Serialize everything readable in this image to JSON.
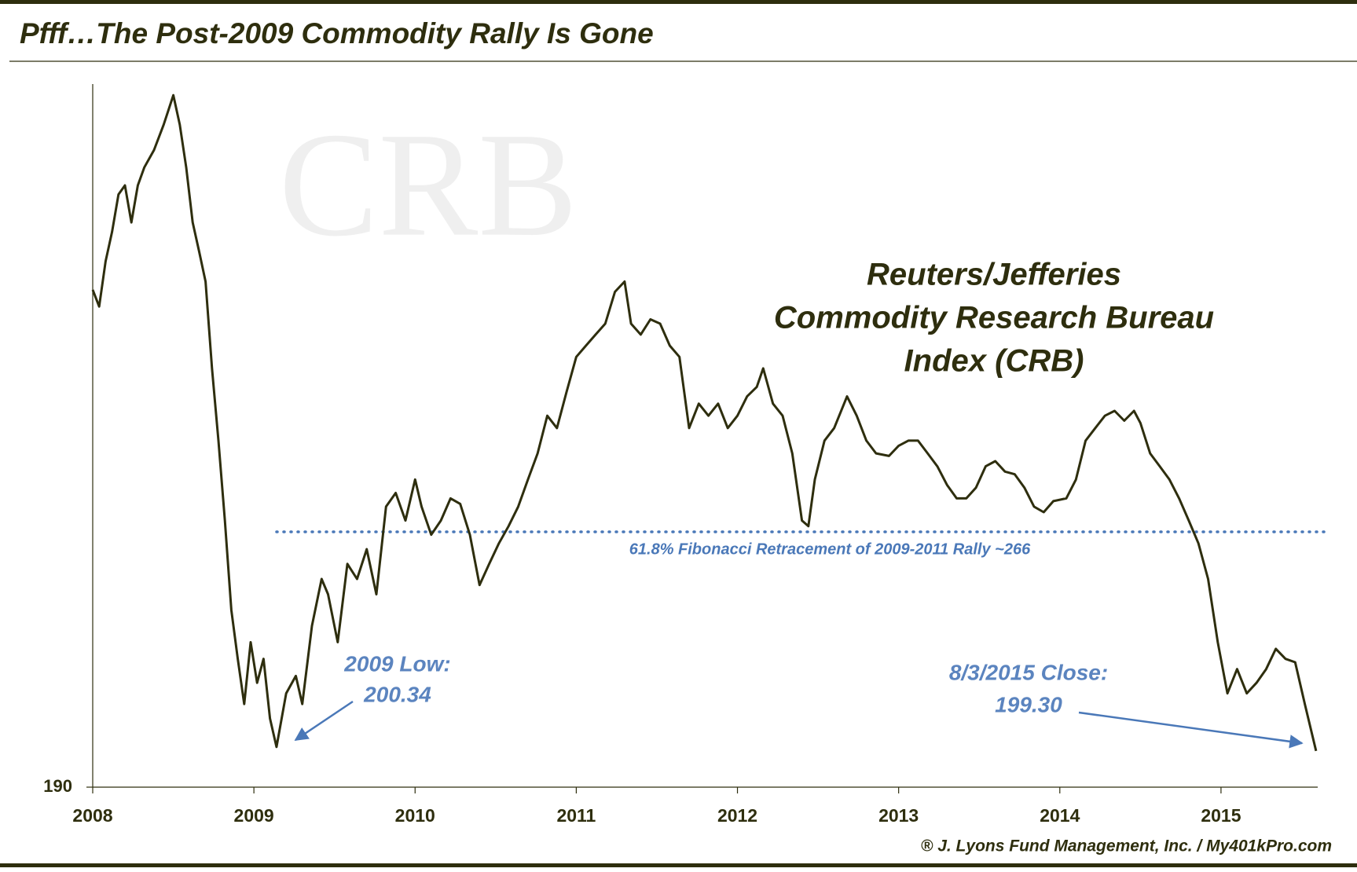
{
  "chart_data": {
    "type": "line",
    "title": "Pfff…The Post-2009 Commodity Rally Is Gone",
    "heading": [
      "Reuters/Jefferies",
      "Commodity Research Bureau",
      "Index (CRB)"
    ],
    "watermark": "CRB",
    "source": "® J. Lyons Fund Management, Inc. / My401kPro.com",
    "annotations": [
      "2009 Low:",
      "200.34",
      "8/3/2015 Close:",
      "199.30"
    ],
    "reference_lines": [
      {
        "value": 266,
        "label": "61.8% Fibonacci  Retracement of 2009-2011 Rally ~266"
      }
    ],
    "color": "#2e2e0e",
    "log_y": true,
    "xlim": [
      2008,
      2015.6
    ],
    "xticks": [
      2008,
      2009,
      2010,
      2011,
      2012,
      2013,
      2014,
      2015
    ],
    "ylim": [
      190,
      480
    ],
    "yticks": [
      190
    ],
    "x": [
      2008.0,
      2008.04,
      2008.08,
      2008.12,
      2008.16,
      2008.2,
      2008.24,
      2008.28,
      2008.32,
      2008.38,
      2008.44,
      2008.5,
      2008.54,
      2008.58,
      2008.62,
      2008.66,
      2008.7,
      2008.74,
      2008.78,
      2008.82,
      2008.86,
      2008.9,
      2008.94,
      2008.98,
      2009.02,
      2009.06,
      2009.1,
      2009.14,
      2009.2,
      2009.26,
      2009.3,
      2009.36,
      2009.42,
      2009.46,
      2009.52,
      2009.58,
      2009.64,
      2009.7,
      2009.76,
      2009.82,
      2009.88,
      2009.94,
      2010.0,
      2010.04,
      2010.1,
      2010.16,
      2010.22,
      2010.28,
      2010.34,
      2010.4,
      2010.46,
      2010.52,
      2010.58,
      2010.64,
      2010.7,
      2010.76,
      2010.82,
      2010.88,
      2010.94,
      2011.0,
      2011.06,
      2011.12,
      2011.18,
      2011.24,
      2011.3,
      2011.34,
      2011.4,
      2011.46,
      2011.52,
      2011.58,
      2011.64,
      2011.7,
      2011.76,
      2011.82,
      2011.88,
      2011.94,
      2012.0,
      2012.06,
      2012.12,
      2012.16,
      2012.22,
      2012.28,
      2012.34,
      2012.4,
      2012.44,
      2012.48,
      2012.54,
      2012.6,
      2012.68,
      2012.74,
      2012.8,
      2012.86,
      2012.94,
      2013.0,
      2013.06,
      2013.12,
      2013.18,
      2013.24,
      2013.3,
      2013.36,
      2013.42,
      2013.48,
      2013.54,
      2013.6,
      2013.66,
      2013.72,
      2013.78,
      2013.84,
      2013.9,
      2013.96,
      2014.04,
      2014.1,
      2014.16,
      2014.22,
      2014.28,
      2014.34,
      2014.4,
      2014.46,
      2014.5,
      2014.56,
      2014.62,
      2014.68,
      2014.74,
      2014.8,
      2014.86,
      2014.92,
      2014.98,
      2015.04,
      2015.1,
      2015.16,
      2015.22,
      2015.28,
      2015.34,
      2015.4,
      2015.46,
      2015.52,
      2015.59
    ],
    "values": [
      366,
      358,
      380,
      395,
      415,
      420,
      400,
      420,
      430,
      440,
      455,
      473,
      455,
      430,
      400,
      385,
      370,
      330,
      300,
      270,
      240,
      225,
      212,
      230,
      218,
      225,
      208,
      200.34,
      215,
      220,
      212,
      235,
      250,
      245,
      230,
      255,
      250,
      260,
      245,
      275,
      280,
      270,
      285,
      275,
      265,
      270,
      278,
      276,
      265,
      248,
      255,
      262,
      268,
      275,
      285,
      295,
      310,
      305,
      320,
      335,
      340,
      345,
      350,
      365,
      370,
      350,
      345,
      352,
      350,
      340,
      335,
      305,
      315,
      310,
      315,
      305,
      310,
      318,
      322,
      330,
      315,
      310,
      295,
      270,
      268,
      285,
      300,
      305,
      318,
      310,
      300,
      295,
      294,
      298,
      300,
      300,
      295,
      290,
      283,
      278,
      278,
      282,
      290,
      292,
      288,
      287,
      282,
      275,
      273,
      277,
      278,
      285,
      300,
      305,
      310,
      312,
      308,
      312,
      307,
      295,
      290,
      285,
      278,
      270,
      262,
      250,
      230,
      215,
      222,
      215,
      218,
      222,
      228,
      225,
      224,
      212,
      199.3
    ]
  }
}
